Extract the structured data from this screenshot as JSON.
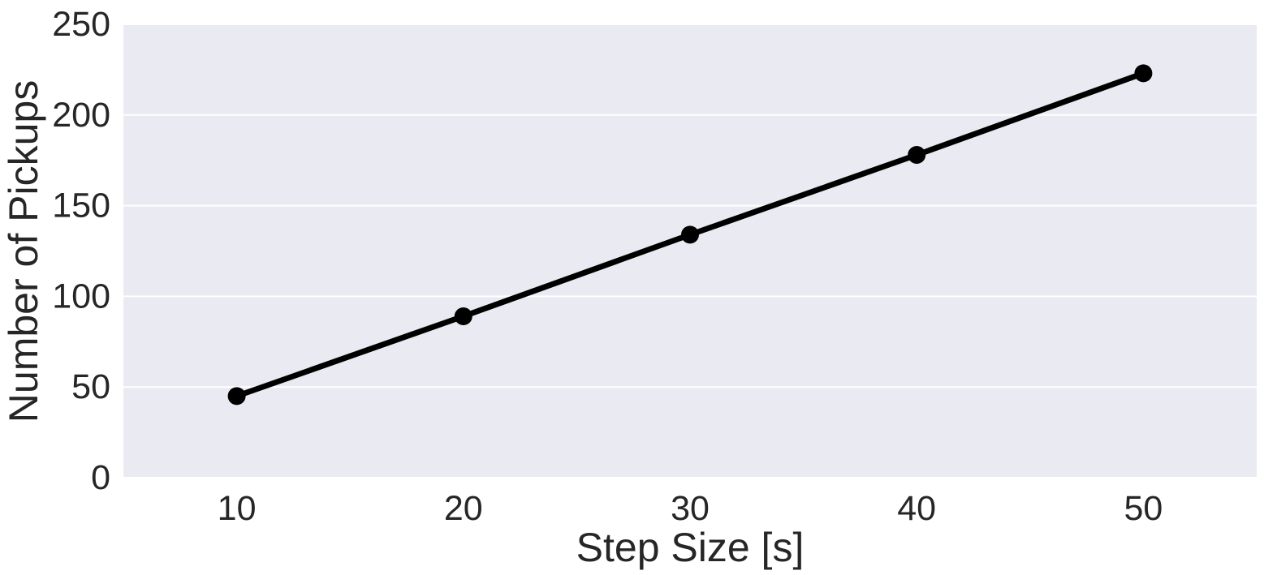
{
  "chart_data": {
    "type": "line",
    "title": "",
    "xlabel": "Step Size [s]",
    "ylabel": "Number of Pickups",
    "x": [
      10,
      20,
      30,
      40,
      50
    ],
    "series": [
      {
        "values": [
          45,
          89,
          134,
          178,
          223
        ]
      }
    ],
    "xlim": [
      5,
      55
    ],
    "ylim": [
      0,
      250
    ],
    "x_ticks": [
      "10",
      "20",
      "30",
      "40",
      "50"
    ],
    "y_ticks": [
      "0",
      "50",
      "100",
      "150",
      "200",
      "250"
    ],
    "grid": true,
    "colors": {
      "plot_background": "#eaeaf2",
      "grid": "#ffffff",
      "line": "#000000",
      "text": "#262626"
    }
  }
}
